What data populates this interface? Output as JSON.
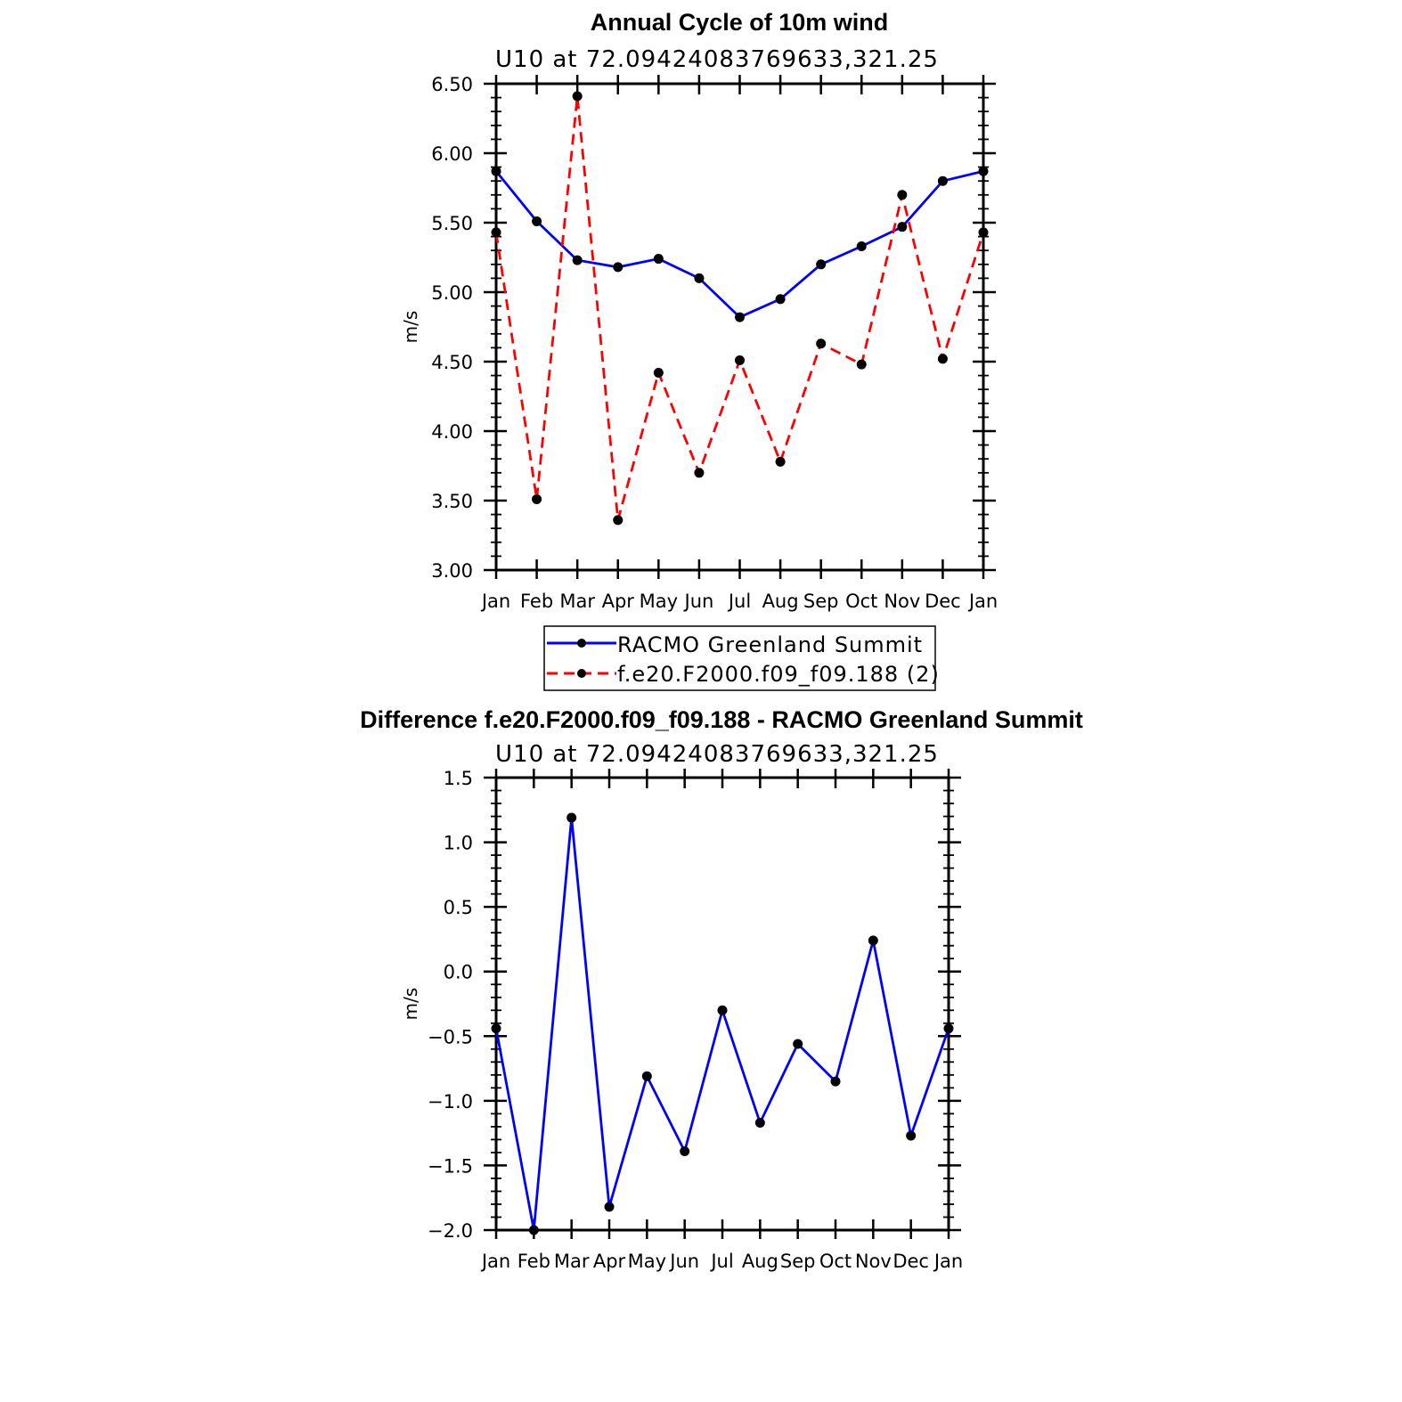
{
  "chart_data": [
    {
      "type": "line",
      "title": "Annual Cycle of 10m wind",
      "subtitle": "U10 at 72.09424083769633,321.25",
      "xlabel": "",
      "ylabel": "m/s",
      "categories": [
        "Jan",
        "Feb",
        "Mar",
        "Apr",
        "May",
        "Jun",
        "Jul",
        "Aug",
        "Sep",
        "Oct",
        "Nov",
        "Dec",
        "Jan"
      ],
      "ylim": [
        3.0,
        6.5
      ],
      "yticks": [
        "3.00",
        "3.50",
        "4.00",
        "4.50",
        "5.00",
        "5.50",
        "6.00",
        "6.50"
      ],
      "series": [
        {
          "name": "RACMO Greenland Summit",
          "color": "#0000ff",
          "dash": "solid",
          "values": [
            5.87,
            5.51,
            5.23,
            5.18,
            5.24,
            5.1,
            4.82,
            4.95,
            5.2,
            5.33,
            5.47,
            5.8,
            5.87
          ]
        },
        {
          "name": "f.e20.F2000.f09_f09.188 (2)",
          "color": "#ff0000",
          "dash": "dashed",
          "values": [
            5.43,
            3.51,
            6.41,
            3.36,
            4.42,
            3.7,
            4.51,
            3.78,
            4.63,
            4.48,
            5.7,
            4.52,
            5.43
          ]
        }
      ],
      "legend": "bottom"
    },
    {
      "type": "line",
      "title": "Difference f.e20.F2000.f09_f09.188 - RACMO Greenland Summit",
      "subtitle": "U10 at 72.09424083769633,321.25",
      "xlabel": "",
      "ylabel": "m/s",
      "categories": [
        "Jan",
        "Feb",
        "Mar",
        "Apr",
        "May",
        "Jun",
        "Jul",
        "Aug",
        "Sep",
        "Oct",
        "Nov",
        "Dec",
        "Jan"
      ],
      "ylim": [
        -2.0,
        1.5
      ],
      "yticks": [
        "−2.0",
        "−1.5",
        "−1.0",
        "−0.5",
        "0.0",
        "0.5",
        "1.0",
        "1.5"
      ],
      "series": [
        {
          "name": "Difference",
          "color": "#0000ff",
          "dash": "solid",
          "values": [
            -0.44,
            -2.0,
            1.19,
            -1.82,
            -0.81,
            -1.39,
            -0.3,
            -1.17,
            -0.56,
            -0.85,
            0.24,
            -1.27,
            -0.44
          ]
        }
      ]
    }
  ]
}
